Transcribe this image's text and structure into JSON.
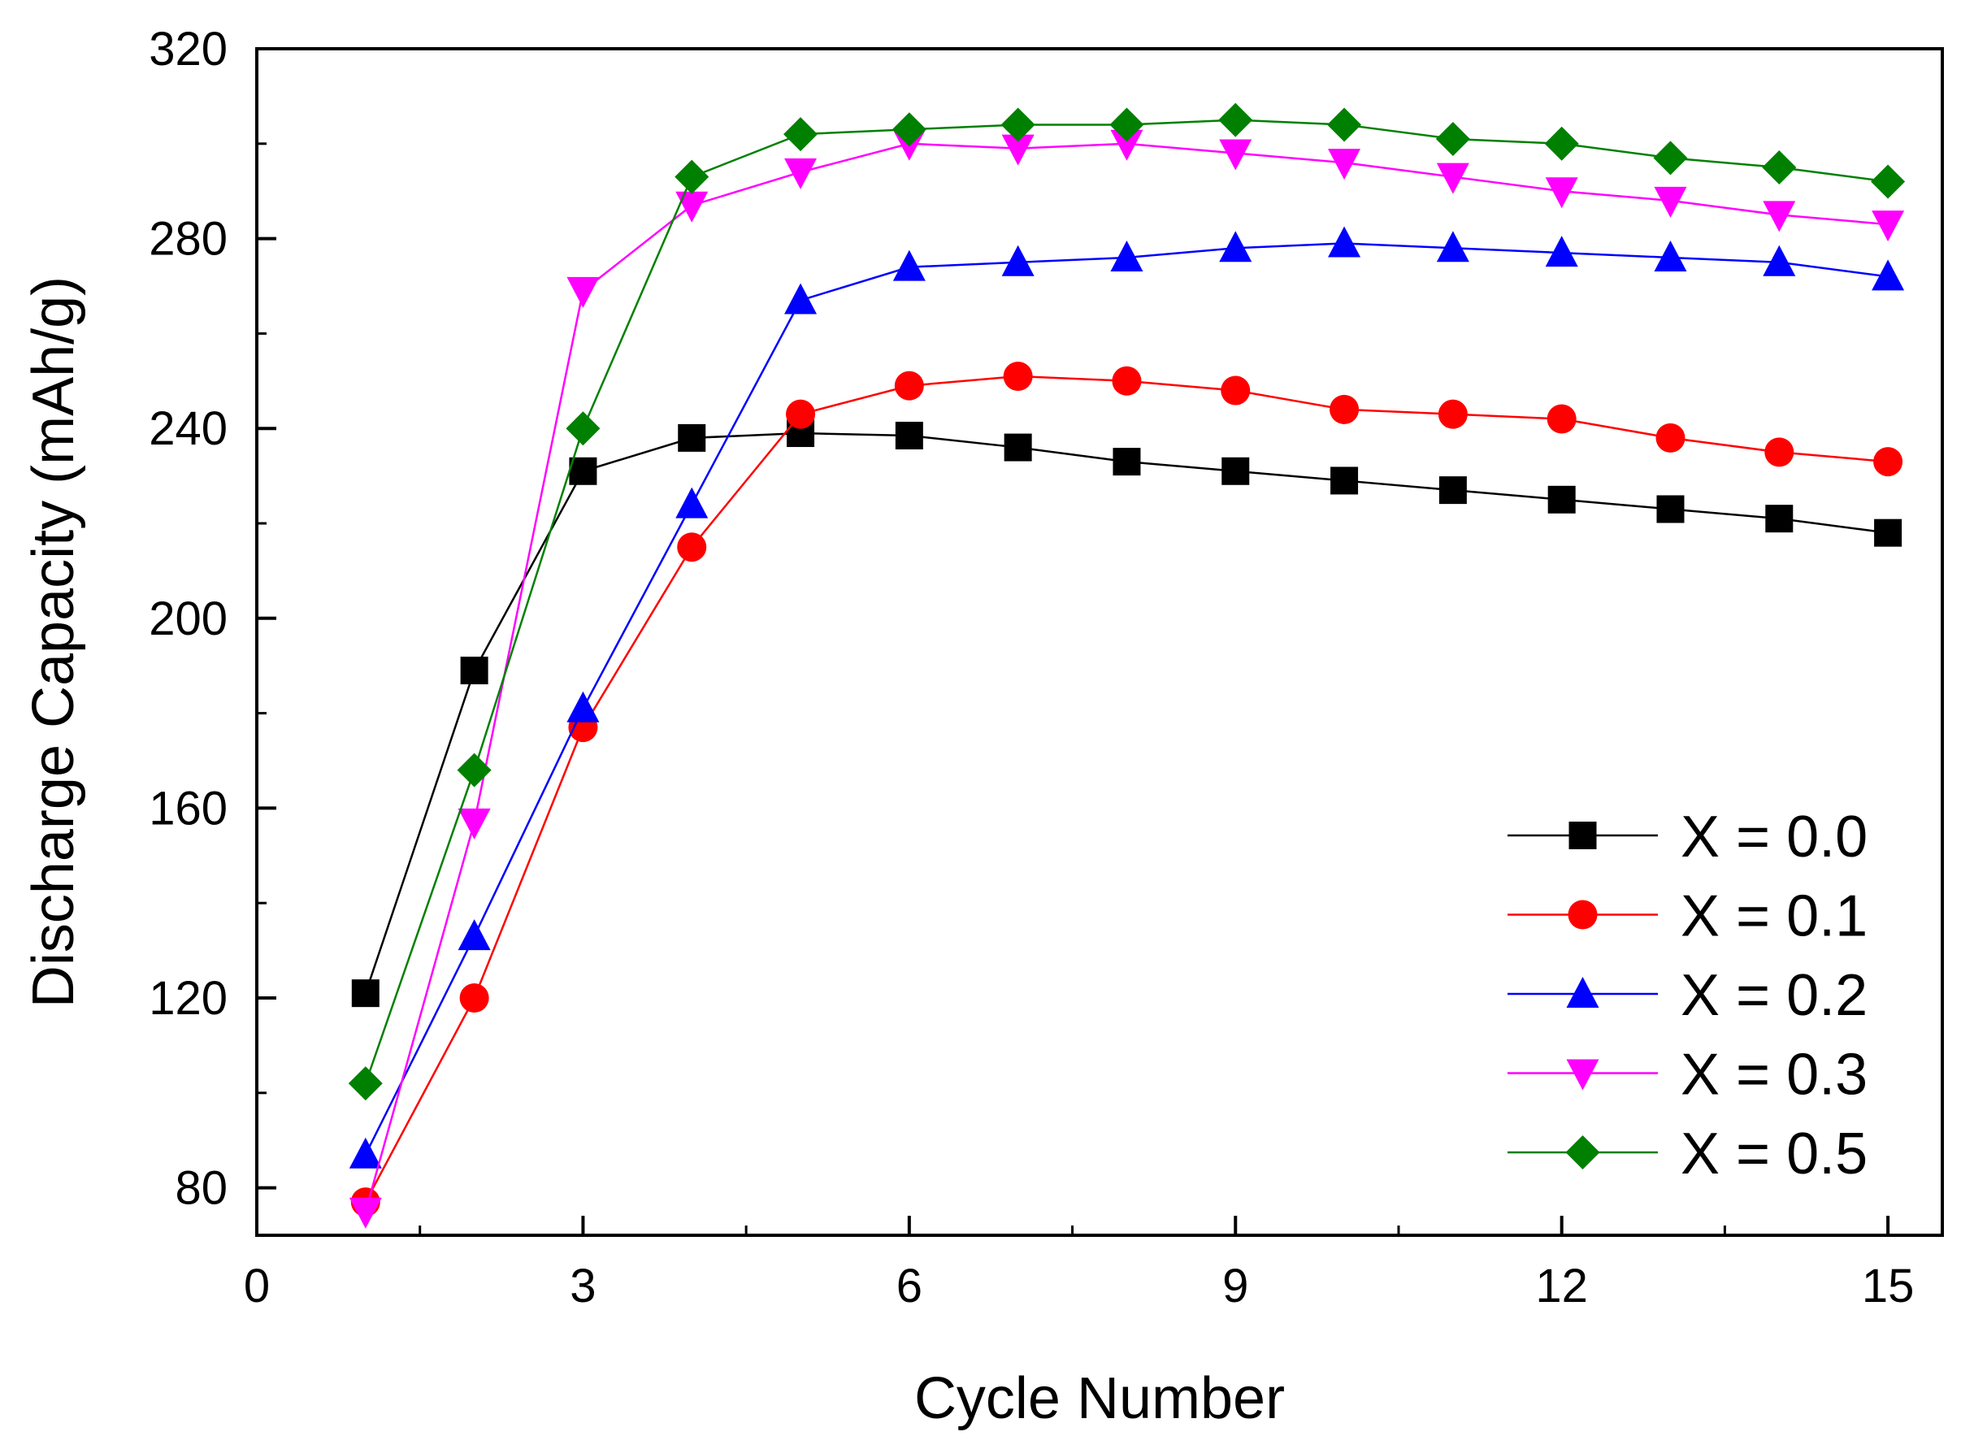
{
  "chart_data": {
    "type": "line",
    "title": "",
    "xlabel": "Cycle Number",
    "ylabel": "Discharge Capacity (mAh/g)",
    "xlim": [
      0,
      15.5
    ],
    "ylim": [
      70,
      320
    ],
    "xticks": [
      0,
      3,
      6,
      9,
      12,
      15
    ],
    "yticks": [
      80,
      120,
      160,
      200,
      240,
      280,
      320
    ],
    "legend_position": "bottom-right",
    "grid": false,
    "x": [
      1,
      2,
      3,
      4,
      5,
      6,
      7,
      8,
      9,
      10,
      11,
      12,
      13,
      14,
      15
    ],
    "series": [
      {
        "name": "X = 0.0",
        "color": "#000000",
        "marker": "square",
        "values": [
          121,
          189,
          231,
          238,
          239,
          238.5,
          236,
          233,
          231,
          229,
          227,
          225,
          223,
          221,
          218
        ]
      },
      {
        "name": "X = 0.1",
        "color": "#ff0000",
        "marker": "circle",
        "values": [
          77,
          120,
          177,
          215,
          243,
          249,
          251,
          250,
          248,
          244,
          243,
          242,
          238,
          235,
          233
        ]
      },
      {
        "name": "X = 0.2",
        "color": "#0000ff",
        "marker": "triangle-up",
        "values": [
          87,
          133,
          181,
          224,
          267,
          274,
          275,
          276,
          278,
          279,
          278,
          277,
          276,
          275,
          272
        ]
      },
      {
        "name": "X = 0.3",
        "color": "#ff00ff",
        "marker": "triangle-down",
        "values": [
          75,
          157,
          269,
          287,
          294,
          300,
          299,
          300,
          298,
          296,
          293,
          290,
          288,
          285,
          283
        ]
      },
      {
        "name": "X = 0.5",
        "color": "#008000",
        "marker": "diamond",
        "values": [
          102,
          168,
          240,
          293,
          302,
          303,
          304,
          304,
          305,
          304,
          301,
          300,
          297,
          295,
          292
        ]
      }
    ]
  }
}
